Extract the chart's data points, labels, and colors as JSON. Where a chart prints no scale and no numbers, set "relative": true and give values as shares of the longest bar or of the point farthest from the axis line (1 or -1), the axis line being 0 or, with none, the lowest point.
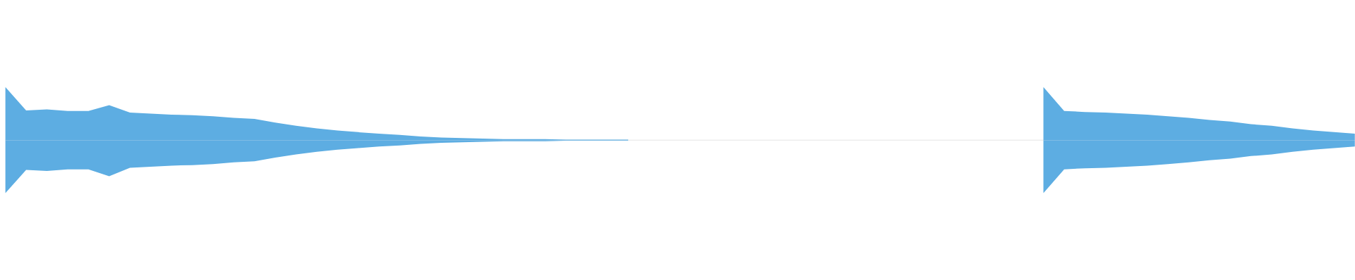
{
  "chart_data": {
    "type": "area",
    "relative": true,
    "categories": [
      null,
      null,
      null,
      null,
      null,
      null,
      null,
      null,
      null,
      null,
      null,
      null,
      null,
      null,
      null,
      null,
      null,
      null,
      null,
      null,
      null,
      null,
      null,
      null,
      null,
      null,
      null,
      null,
      null,
      null,
      null,
      null,
      null,
      null,
      null,
      null,
      null,
      null,
      null,
      null,
      null,
      null,
      null,
      null,
      null,
      null,
      null,
      null,
      null,
      null,
      null,
      null,
      null,
      null,
      null,
      null,
      null,
      null,
      null,
      null,
      null,
      null,
      null,
      null,
      null,
      null
    ],
    "series": [
      {
        "color": "#5dade2",
        "values": [
          1.0,
          0.56,
          0.58,
          0.55,
          0.55,
          0.66,
          0.52,
          0.5,
          0.48,
          0.47,
          0.45,
          0.42,
          0.4,
          0.33,
          0.27,
          0.22,
          0.18,
          0.15,
          0.12,
          0.1,
          0.07,
          0.05,
          0.04,
          0.03,
          0.02,
          0.02,
          0.02,
          0.01,
          0.01,
          0.01,
          0.01,
          null,
          null,
          null,
          null,
          null,
          null,
          null,
          null,
          null,
          null,
          null,
          null,
          null,
          null,
          null,
          null,
          null,
          null,
          null,
          1.0,
          0.55,
          0.53,
          0.52,
          0.5,
          0.48,
          0.45,
          0.42,
          0.38,
          0.35,
          0.3,
          0.27,
          0.22,
          0.18,
          0.15,
          0.12
        ]
      },
      {
        "color": "#5dade2",
        "values": [
          -1.0,
          -0.56,
          -0.58,
          -0.55,
          -0.55,
          -0.68,
          -0.52,
          -0.5,
          -0.48,
          -0.47,
          -0.45,
          -0.42,
          -0.4,
          -0.33,
          -0.27,
          -0.22,
          -0.18,
          -0.15,
          -0.12,
          -0.1,
          -0.07,
          -0.05,
          -0.04,
          -0.03,
          -0.02,
          -0.02,
          -0.02,
          -0.01,
          -0.01,
          -0.01,
          -0.01,
          null,
          null,
          null,
          null,
          null,
          null,
          null,
          null,
          null,
          null,
          null,
          null,
          null,
          null,
          null,
          null,
          null,
          null,
          null,
          -1.0,
          -0.55,
          -0.53,
          -0.52,
          -0.5,
          -0.48,
          -0.45,
          -0.42,
          -0.38,
          -0.35,
          -0.3,
          -0.27,
          -0.22,
          -0.18,
          -0.15,
          -0.12
        ]
      }
    ]
  }
}
